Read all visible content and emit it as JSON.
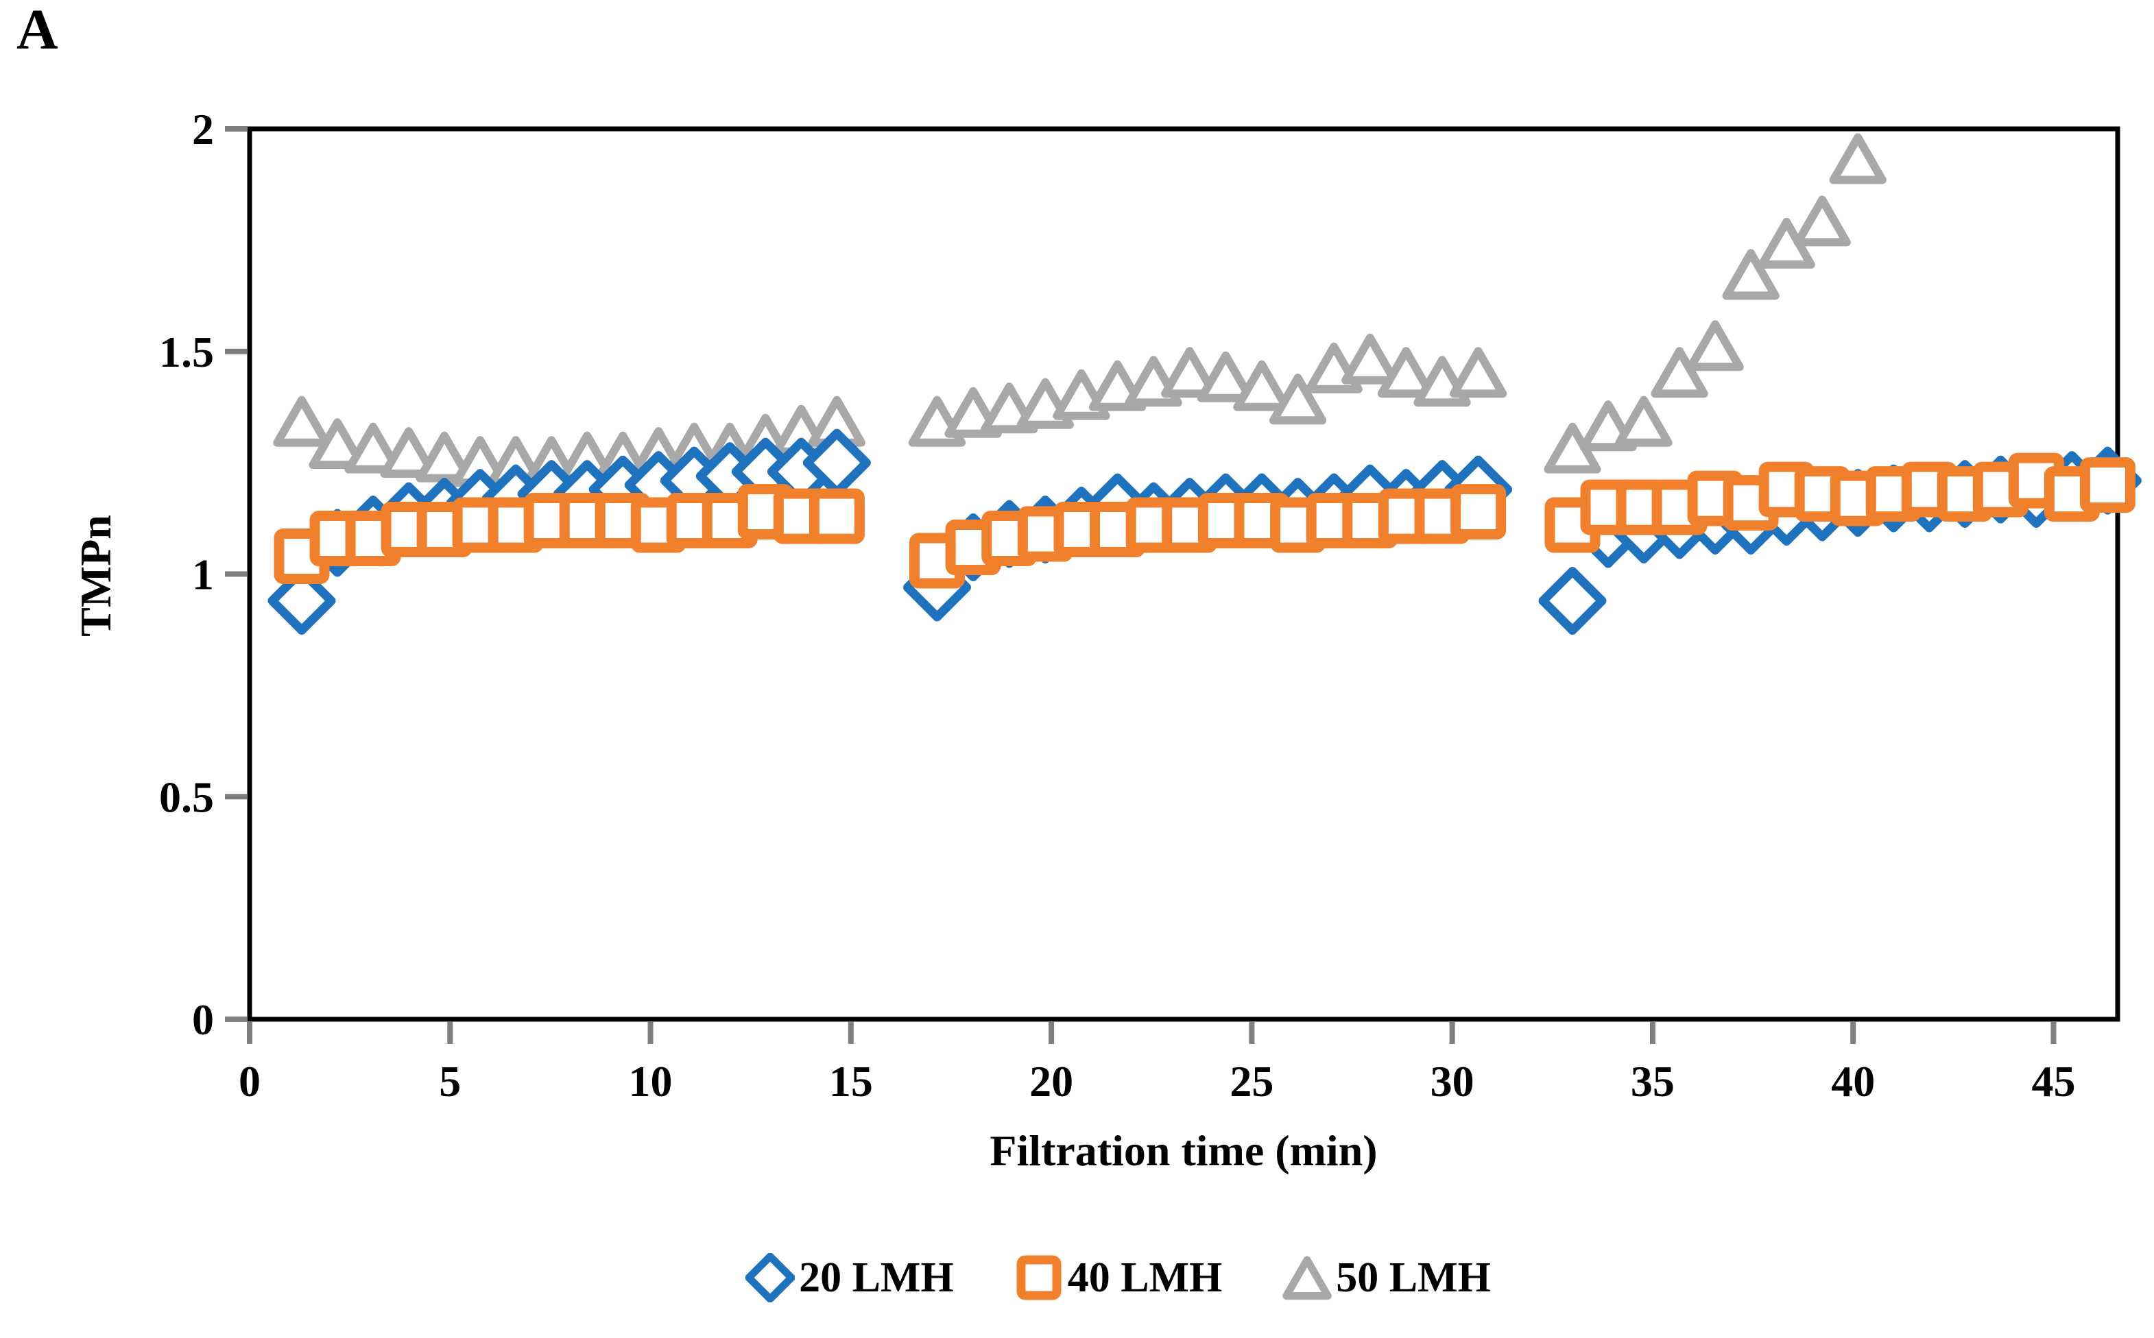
{
  "panel_label": "A",
  "chart_data": {
    "type": "scatter",
    "title": "",
    "xlabel": "Filtration time (min)",
    "ylabel": "TMPn",
    "xlim": [
      0,
      46.6
    ],
    "ylim": [
      0,
      2
    ],
    "x_ticks": [
      0,
      5,
      10,
      15,
      20,
      25,
      30,
      35,
      40,
      45
    ],
    "x_tick_labels": [
      "0",
      "5",
      "10",
      "15",
      "20",
      "25",
      "30",
      "35",
      "40",
      "45"
    ],
    "y_ticks": [
      2,
      1.5,
      1,
      0.5,
      0
    ],
    "y_tick_labels": [
      "2",
      "1.5",
      "1",
      "0.5",
      "0"
    ],
    "grid": false,
    "legend_position": "bottom",
    "plot_border": true,
    "axis_color": "#000000",
    "tick_color": "#7f7f7f",
    "series": [
      {
        "name": "20 LMH",
        "marker": "diamond",
        "color": "#1F72BE",
        "points": [
          [
            1.3,
            0.94
          ],
          [
            2.19,
            1.07
          ],
          [
            3.08,
            1.1
          ],
          [
            3.97,
            1.13
          ],
          [
            4.86,
            1.14
          ],
          [
            5.75,
            1.16
          ],
          [
            6.64,
            1.17
          ],
          [
            7.53,
            1.18
          ],
          [
            8.42,
            1.18
          ],
          [
            9.31,
            1.19
          ],
          [
            10.2,
            1.2
          ],
          [
            11.09,
            1.21
          ],
          [
            11.98,
            1.22
          ],
          [
            12.87,
            1.23
          ],
          [
            13.76,
            1.23
          ],
          [
            14.65,
            1.25
          ],
          [
            17.15,
            0.97
          ],
          [
            18.05,
            1.06
          ],
          [
            18.95,
            1.09
          ],
          [
            19.85,
            1.1
          ],
          [
            20.75,
            1.12
          ],
          [
            21.65,
            1.15
          ],
          [
            22.55,
            1.13
          ],
          [
            23.45,
            1.14
          ],
          [
            24.35,
            1.15
          ],
          [
            25.25,
            1.15
          ],
          [
            26.15,
            1.14
          ],
          [
            27.05,
            1.15
          ],
          [
            27.95,
            1.17
          ],
          [
            28.85,
            1.16
          ],
          [
            29.75,
            1.18
          ],
          [
            30.65,
            1.19
          ],
          [
            33.0,
            0.94
          ],
          [
            33.89,
            1.09
          ],
          [
            34.78,
            1.1
          ],
          [
            35.67,
            1.11
          ],
          [
            36.56,
            1.12
          ],
          [
            37.45,
            1.12
          ],
          [
            38.34,
            1.14
          ],
          [
            39.23,
            1.15
          ],
          [
            40.12,
            1.16
          ],
          [
            41.01,
            1.17
          ],
          [
            41.9,
            1.17
          ],
          [
            42.79,
            1.18
          ],
          [
            43.68,
            1.19
          ],
          [
            44.57,
            1.18
          ],
          [
            45.46,
            1.2
          ],
          [
            46.35,
            1.21
          ]
        ]
      },
      {
        "name": "40 LMH",
        "marker": "square",
        "color": "#F0802C",
        "points": [
          [
            1.3,
            1.04
          ],
          [
            2.19,
            1.08
          ],
          [
            3.08,
            1.08
          ],
          [
            3.97,
            1.1
          ],
          [
            4.86,
            1.1
          ],
          [
            5.75,
            1.11
          ],
          [
            6.64,
            1.11
          ],
          [
            7.53,
            1.12
          ],
          [
            8.42,
            1.12
          ],
          [
            9.31,
            1.12
          ],
          [
            10.2,
            1.11
          ],
          [
            11.09,
            1.12
          ],
          [
            11.98,
            1.12
          ],
          [
            12.87,
            1.14
          ],
          [
            13.76,
            1.13
          ],
          [
            14.65,
            1.13
          ],
          [
            17.15,
            1.03
          ],
          [
            18.05,
            1.06
          ],
          [
            18.95,
            1.08
          ],
          [
            19.85,
            1.09
          ],
          [
            20.75,
            1.1
          ],
          [
            21.65,
            1.1
          ],
          [
            22.55,
            1.11
          ],
          [
            23.45,
            1.11
          ],
          [
            24.35,
            1.12
          ],
          [
            25.25,
            1.12
          ],
          [
            26.15,
            1.11
          ],
          [
            27.05,
            1.12
          ],
          [
            27.95,
            1.12
          ],
          [
            28.85,
            1.13
          ],
          [
            29.75,
            1.13
          ],
          [
            30.65,
            1.14
          ],
          [
            33.0,
            1.11
          ],
          [
            33.89,
            1.15
          ],
          [
            34.78,
            1.15
          ],
          [
            35.67,
            1.15
          ],
          [
            36.56,
            1.17
          ],
          [
            37.45,
            1.16
          ],
          [
            38.34,
            1.19
          ],
          [
            39.23,
            1.18
          ],
          [
            40.12,
            1.17
          ],
          [
            41.01,
            1.18
          ],
          [
            41.9,
            1.19
          ],
          [
            42.79,
            1.18
          ],
          [
            43.68,
            1.19
          ],
          [
            44.57,
            1.21
          ],
          [
            45.46,
            1.18
          ],
          [
            46.35,
            1.2
          ]
        ]
      },
      {
        "name": "50 LMH",
        "marker": "triangle",
        "color": "#A8A8A8",
        "points": [
          [
            1.3,
            1.34
          ],
          [
            2.19,
            1.29
          ],
          [
            3.08,
            1.28
          ],
          [
            3.97,
            1.27
          ],
          [
            4.86,
            1.26
          ],
          [
            5.75,
            1.25
          ],
          [
            6.64,
            1.25
          ],
          [
            7.53,
            1.25
          ],
          [
            8.42,
            1.26
          ],
          [
            9.31,
            1.26
          ],
          [
            10.2,
            1.27
          ],
          [
            11.09,
            1.28
          ],
          [
            11.98,
            1.28
          ],
          [
            12.87,
            1.3
          ],
          [
            13.76,
            1.32
          ],
          [
            14.65,
            1.34
          ],
          [
            17.15,
            1.34
          ],
          [
            18.05,
            1.36
          ],
          [
            18.95,
            1.37
          ],
          [
            19.85,
            1.38
          ],
          [
            20.75,
            1.4
          ],
          [
            21.65,
            1.42
          ],
          [
            22.55,
            1.43
          ],
          [
            23.45,
            1.45
          ],
          [
            24.35,
            1.44
          ],
          [
            25.25,
            1.42
          ],
          [
            26.15,
            1.39
          ],
          [
            27.05,
            1.46
          ],
          [
            27.95,
            1.48
          ],
          [
            28.85,
            1.45
          ],
          [
            29.75,
            1.43
          ],
          [
            30.65,
            1.45
          ],
          [
            33.0,
            1.28
          ],
          [
            33.89,
            1.33
          ],
          [
            34.78,
            1.34
          ],
          [
            35.67,
            1.45
          ],
          [
            36.56,
            1.51
          ],
          [
            37.45,
            1.67
          ],
          [
            38.34,
            1.74
          ],
          [
            39.23,
            1.79
          ],
          [
            40.12,
            1.93
          ]
        ]
      }
    ]
  }
}
